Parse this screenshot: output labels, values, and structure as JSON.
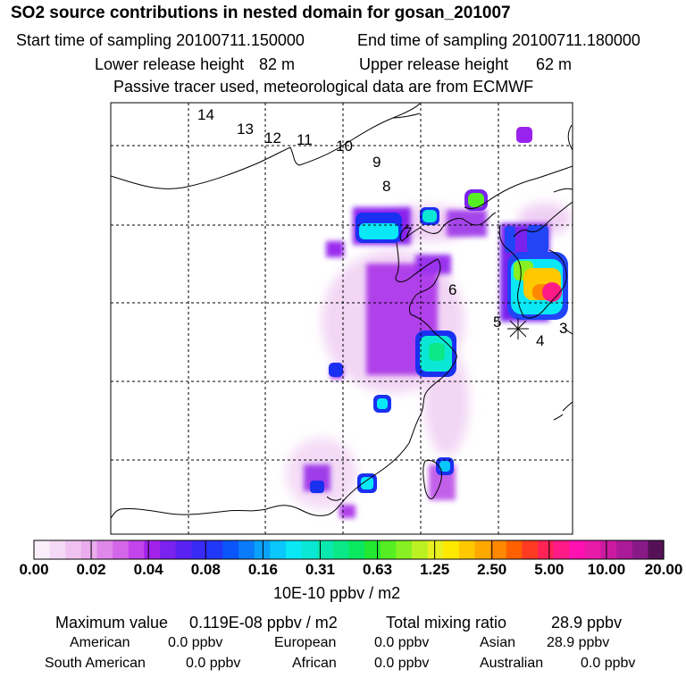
{
  "title": "SO2 source contributions in nested domain for gosan_201007",
  "header": {
    "start_label": "Start time of sampling 20100711.150000",
    "end_label": "End time of sampling 20100711.180000",
    "lower_label": "Lower release height",
    "lower_value": "82 m",
    "upper_label": "Upper release height",
    "upper_value": "62 m",
    "note": "Passive tracer used, meteorological data are from ECMWF"
  },
  "map": {
    "trajectory_labels": [
      "14",
      "13",
      "12",
      "11",
      "10",
      "9",
      "8",
      "7",
      "6",
      "5",
      "4",
      "3"
    ],
    "receptor": "gosan"
  },
  "chart_data": {
    "type": "heatmap",
    "title": "SO2 source contributions in nested domain for gosan_201007",
    "colorbar": {
      "units": "10E-10 ppbv / m2",
      "tick_labels": [
        "0.00",
        "0.02",
        "0.04",
        "0.08",
        "0.16",
        "0.31",
        "0.63",
        "1.25",
        "2.50",
        "5.00",
        "10.00",
        "20.00"
      ],
      "colors": [
        "#fbeefb",
        "#f5d8f6",
        "#efc2f1",
        "#e9acec",
        "#e088ea",
        "#d466ea",
        "#c244ea",
        "#a322ea",
        "#7a22ee",
        "#5a22f2",
        "#3a2af6",
        "#2238f8",
        "#0a56fb",
        "#0a7cfb",
        "#0aa2fb",
        "#0ac8fb",
        "#0ae8f5",
        "#0ae8d5",
        "#0ae8b0",
        "#0ae888",
        "#0ae860",
        "#22e830",
        "#55ee22",
        "#88f022",
        "#bbf022",
        "#e8f022",
        "#ffe800",
        "#ffc800",
        "#ffa800",
        "#ff8800",
        "#ff6000",
        "#ff3a22",
        "#ff2255",
        "#ff1a88",
        "#ff10b0",
        "#e81aa8",
        "#cc1aa0",
        "#aa1a99",
        "#881a88",
        "#551155"
      ]
    }
  },
  "footer": {
    "max_label": "Maximum value",
    "max_value": "0.119E-08 ppbv / m2",
    "total_label": "Total mixing ratio",
    "total_value": "28.9 ppbv",
    "regions": [
      {
        "name": "American",
        "value": "0.0 ppbv"
      },
      {
        "name": "European",
        "value": "0.0 ppbv"
      },
      {
        "name": "Asian",
        "value": "28.9 ppbv"
      },
      {
        "name": "South American",
        "value": "0.0 ppbv"
      },
      {
        "name": "African",
        "value": "0.0 ppbv"
      },
      {
        "name": "Australian",
        "value": "0.0 ppbv"
      }
    ]
  }
}
